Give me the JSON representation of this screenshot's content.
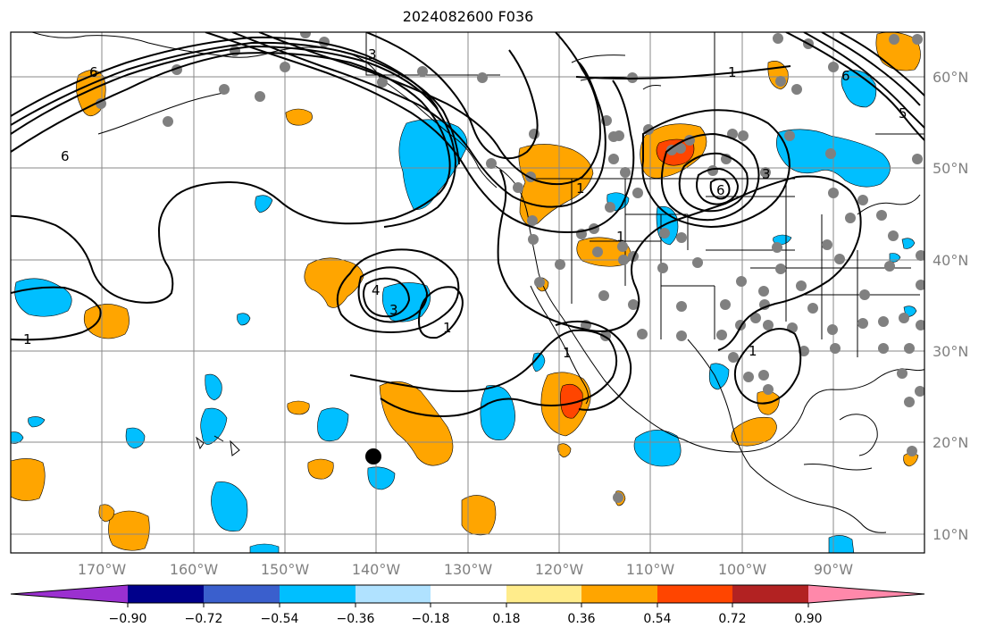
{
  "title": "2024082600 F036",
  "map": {
    "lon_ticks": [
      "170°W",
      "160°W",
      "150°W",
      "140°W",
      "130°W",
      "120°W",
      "110°W",
      "100°W",
      "90°W"
    ],
    "lat_ticks": [
      "60°N",
      "50°N",
      "40°N",
      "30°N",
      "20°N",
      "10°N"
    ],
    "grid": true,
    "contour_labels": [
      "1",
      "6",
      "6",
      "3",
      "4",
      "3",
      "1",
      "1",
      "1",
      "1",
      "6",
      "3",
      "1",
      "5",
      "6",
      "1"
    ]
  },
  "colorbar": {
    "tick_labels": [
      "−0.90",
      "−0.72",
      "−0.54",
      "−0.36",
      "−0.18",
      "0.18",
      "0.36",
      "0.54",
      "0.72",
      "0.90"
    ],
    "colors": [
      "#9b30d0",
      "#00008b",
      "#3a5fcd",
      "#00bfff",
      "#b0e2ff",
      "#ffffff",
      "#ffec8b",
      "#ffa500",
      "#ff4500",
      "#b22222",
      "#ff88aa"
    ]
  },
  "colors": {
    "negative_strong": "#00bfff",
    "positive_moderate": "#ffa500",
    "positive_strong": "#ff4500",
    "marker_gray": "#808080"
  }
}
